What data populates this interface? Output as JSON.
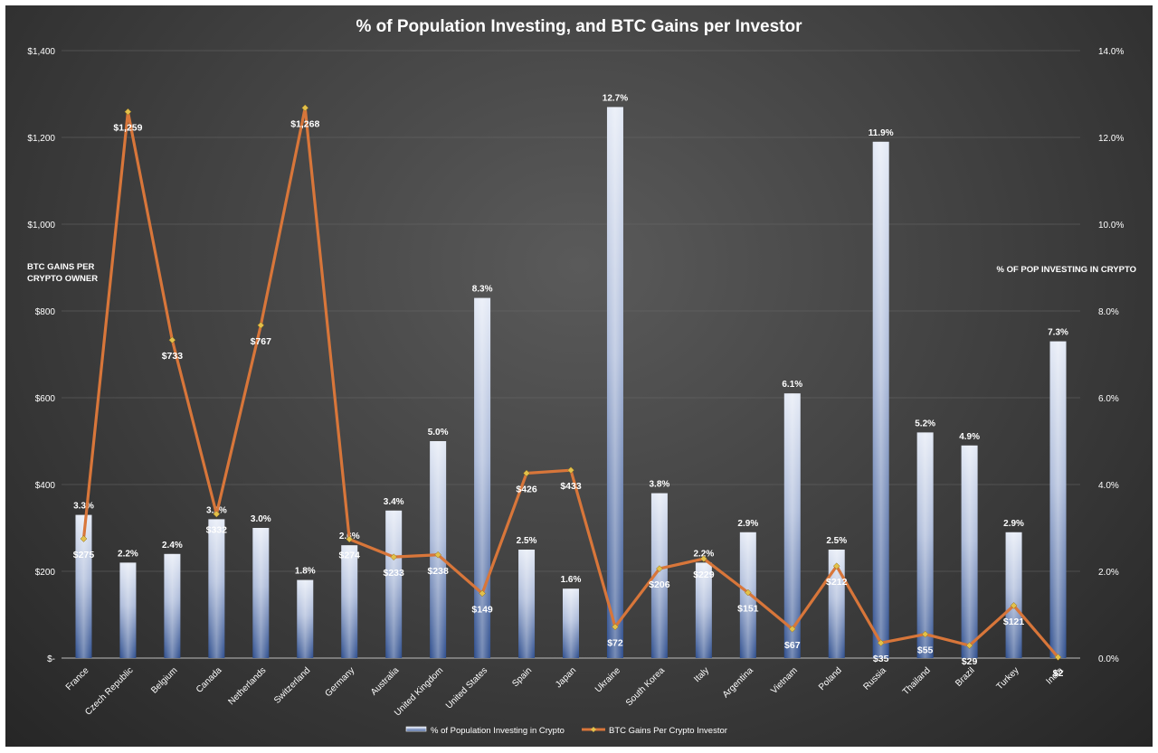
{
  "chart_data": {
    "type": "bar",
    "title": "% of Population Investing, and BTC Gains per Investor",
    "categories": [
      "France",
      "Czech Republic",
      "Belgium",
      "Canada",
      "Netherlands",
      "Switzerland",
      "Germany",
      "Australia",
      "United Kingdom",
      "United States",
      "Spain",
      "Japan",
      "Ukraine",
      "South Korea",
      "Italy",
      "Argentina",
      "Vietnam",
      "Poland",
      "Russia",
      "Thailand",
      "Brazil",
      "Turkey",
      "India"
    ],
    "series": [
      {
        "name": "% of Population Investing in Crypto",
        "kind": "bar",
        "axis": "right",
        "values": [
          3.3,
          2.2,
          2.4,
          3.2,
          3.0,
          1.8,
          2.6,
          3.4,
          5.0,
          8.3,
          2.5,
          1.6,
          12.7,
          3.8,
          2.2,
          2.9,
          6.1,
          2.5,
          11.9,
          5.2,
          4.9,
          2.9,
          7.3
        ],
        "labels": [
          "3.3%",
          "2.2%",
          "2.4%",
          "3.2%",
          "3.0%",
          "1.8%",
          "2.6%",
          "3.4%",
          "5.0%",
          "8.3%",
          "2.5%",
          "1.6%",
          "12.7%",
          "3.8%",
          "2.2%",
          "2.9%",
          "6.1%",
          "2.5%",
          "11.9%",
          "5.2%",
          "4.9%",
          "2.9%",
          "7.3%"
        ]
      },
      {
        "name": "BTC Gains Per Crypto Investor",
        "kind": "line",
        "axis": "left",
        "values": [
          275,
          1259,
          733,
          332,
          767,
          1268,
          274,
          233,
          238,
          149,
          426,
          433,
          72,
          206,
          229,
          151,
          67,
          212,
          35,
          55,
          29,
          121,
          2
        ],
        "labels": [
          "$275",
          "$1,259",
          "$733",
          "$332",
          "$767",
          "$1,268",
          "$274",
          "$233",
          "$238",
          "$149",
          "$426",
          "$433",
          "$72",
          "$206",
          "$229",
          "$151",
          "$67",
          "$212",
          "$35",
          "$55",
          "$29",
          "$121",
          "$2"
        ]
      }
    ],
    "ylabel_left": "BTC GAINS PER CRYPTO OWNER",
    "ylabel_right": "% OF POP INVESTING IN CRYPTO",
    "ylim_left": [
      0,
      1400
    ],
    "ylim_right": [
      0,
      14
    ],
    "left_ticks": [
      "$-",
      "$200",
      "$400",
      "$600",
      "$800",
      "$1,000",
      "$1,200",
      "$1,400"
    ],
    "right_ticks": [
      "0.0%",
      "2.0%",
      "4.0%",
      "6.0%",
      "8.0%",
      "10.0%",
      "12.0%",
      "14.0%"
    ],
    "grid": true,
    "legend_position": "bottom",
    "colors": {
      "bar_top": "#dde4f2",
      "bar_bottom": "#2f4f8f",
      "line": "#d8763a",
      "marker": "#e2c04a",
      "text": "#ffffff"
    }
  }
}
